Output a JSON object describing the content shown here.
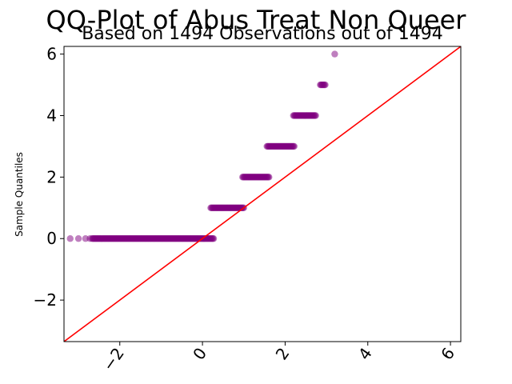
{
  "chart_data": {
    "type": "scatter",
    "title": "QQ-Plot of Abus Treat Non Queer",
    "subtitle": "Based on 1494 Observations out of 1494",
    "xlabel": "",
    "ylabel": "Sample Quantiles",
    "xlim": [
      -3.35,
      6.25
    ],
    "ylim": [
      -3.35,
      6.25
    ],
    "x_ticks": [
      -2,
      0,
      2,
      4,
      6
    ],
    "y_ticks": [
      -2,
      0,
      2,
      4,
      6
    ],
    "x_tick_labels": [
      "−2",
      "0",
      "2",
      "4",
      "6"
    ],
    "y_tick_labels": [
      "−2",
      "0",
      "2",
      "4",
      "6"
    ],
    "grid": false,
    "point_color": "#800080",
    "line_color": "#ff0000",
    "reference_line": {
      "slope": 1,
      "intercept": 0
    },
    "series": [
      {
        "values_bands": [
          {
            "y": 0,
            "x_from": -3.2,
            "x_to": 0.27,
            "outliers": [
              -3.2,
              -3.0,
              -2.83,
              -2.72
            ]
          },
          {
            "y": 1,
            "x_from": 0.2,
            "x_to": 1.0
          },
          {
            "y": 2,
            "x_from": 0.97,
            "x_to": 1.62
          },
          {
            "y": 3,
            "x_from": 1.56,
            "x_to": 2.22
          },
          {
            "y": 4,
            "x_from": 2.2,
            "x_to": 2.75
          },
          {
            "y": 5,
            "x_from": 2.85,
            "x_to": 2.98
          },
          {
            "y": 6,
            "x_from": 3.2,
            "x_to": 3.2
          }
        ]
      }
    ]
  }
}
